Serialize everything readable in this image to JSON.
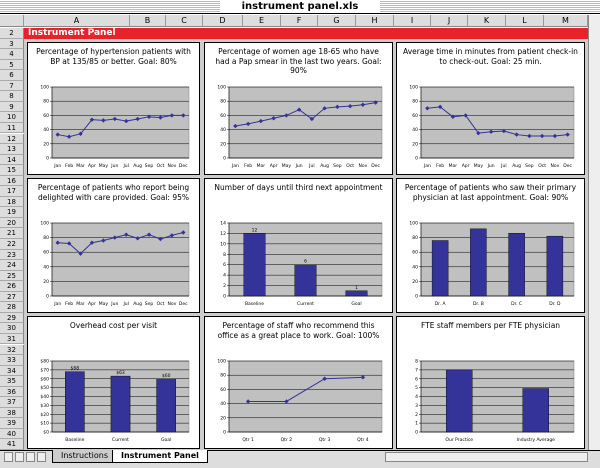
{
  "window": {
    "title": "instrument panel.xls"
  },
  "columns": [
    "A",
    "B",
    "C",
    "D",
    "E",
    "F",
    "G",
    "H",
    "I",
    "J",
    "K",
    "L",
    "M"
  ],
  "rows": [
    2,
    3,
    4,
    5,
    6,
    7,
    8,
    9,
    10,
    11,
    12,
    13,
    14,
    15,
    16,
    17,
    18,
    19,
    20,
    21,
    22,
    23,
    24,
    25,
    26,
    27,
    28,
    29,
    30,
    31,
    32,
    33,
    34,
    35,
    36,
    37,
    38,
    39,
    40,
    41
  ],
  "banner": "Instrument Panel",
  "sheet_tabs": [
    "Instructions",
    "Instrument Panel"
  ],
  "chart_data": [
    {
      "type": "line",
      "title": "Percentage of hypertension patients with BP at 135/85 or better. Goal: 80%",
      "categories": [
        "Jan",
        "Feb",
        "Mar",
        "Apr",
        "May",
        "Jun",
        "Jul",
        "Aug",
        "Sep",
        "Oct",
        "Nov",
        "Dec"
      ],
      "values": [
        33,
        30,
        34,
        54,
        53,
        55,
        52,
        55,
        58,
        57,
        60,
        60
      ],
      "color": "#333399",
      "ylim": [
        0,
        100
      ],
      "yticks": [
        0,
        20,
        40,
        60,
        80,
        100
      ],
      "grid": true
    },
    {
      "type": "line",
      "title": "Percentage of women age 18-65 who have had a Pap smear in the last two years. Goal: 90%",
      "categories": [
        "Jan",
        "Feb",
        "Mar",
        "Apr",
        "May",
        "Jun",
        "Jul",
        "Aug",
        "Sep",
        "Oct",
        "Nov",
        "Dec"
      ],
      "values": [
        45,
        48,
        52,
        56,
        60,
        68,
        55,
        70,
        72,
        73,
        75,
        78
      ],
      "color": "#333399",
      "ylim": [
        0,
        100
      ],
      "yticks": [
        0,
        20,
        40,
        60,
        80,
        100
      ],
      "grid": true
    },
    {
      "type": "line",
      "title": "Average time in minutes from patient check-in to check-out. Goal: 25 min.",
      "categories": [
        "Jan",
        "Feb",
        "Mar",
        "Apr",
        "May",
        "Jun",
        "Jul",
        "Aug",
        "Sep",
        "Oct",
        "Nov",
        "Dec"
      ],
      "values": [
        70,
        72,
        58,
        60,
        35,
        37,
        38,
        33,
        31,
        31,
        31,
        33
      ],
      "color": "#333399",
      "ylim": [
        0,
        100
      ],
      "yticks": [
        0,
        20,
        40,
        60,
        80,
        100
      ],
      "grid": true
    },
    {
      "type": "line",
      "title": "Percentage of patients who report being delighted with care provided. Goal: 95%",
      "categories": [
        "Jan",
        "Feb",
        "Mar",
        "Apr",
        "May",
        "Jun",
        "Jul",
        "Aug",
        "Sep",
        "Oct",
        "Nov",
        "Dec"
      ],
      "values": [
        73,
        72,
        58,
        73,
        76,
        80,
        84,
        79,
        84,
        78,
        83,
        87
      ],
      "color": "#333399",
      "ylim": [
        0,
        100
      ],
      "yticks": [
        0,
        20,
        40,
        60,
        80,
        100
      ],
      "grid": true
    },
    {
      "type": "bar",
      "title": "Number of days until third next appointment",
      "categories": [
        "Baseline",
        "Current",
        "Goal"
      ],
      "values": [
        12,
        6,
        1
      ],
      "color": "#333399",
      "data_labels": true,
      "ylim": [
        0,
        14
      ],
      "yticks": [
        0,
        2,
        4,
        6,
        8,
        10,
        12,
        14
      ],
      "grid": true
    },
    {
      "type": "bar",
      "title": "Percentage of patients who saw their primary physician at last appointment. Goal: 90%",
      "categories": [
        "Dr. A",
        "Dr. B",
        "Dr. C",
        "Dr. D"
      ],
      "values": [
        76,
        92,
        86,
        82
      ],
      "color": "#333399",
      "ylim": [
        0,
        100
      ],
      "yticks": [
        0,
        20,
        40,
        60,
        80,
        100
      ],
      "grid": true
    },
    {
      "type": "bar",
      "title": "Overhead cost per visit",
      "categories": [
        "Baseline",
        "Current",
        "Goal"
      ],
      "values": [
        68,
        63,
        60
      ],
      "value_labels": [
        "$68",
        "$63",
        "$60"
      ],
      "color": "#333399",
      "data_labels": true,
      "ylim": [
        0,
        80
      ],
      "yticks": [
        {
          "value": 0,
          "label": "$0"
        },
        {
          "value": 10,
          "label": "$10"
        },
        {
          "value": 20,
          "label": "$20"
        },
        {
          "value": 30,
          "label": "$30"
        },
        {
          "value": 40,
          "label": "$40"
        },
        {
          "value": 50,
          "label": "$50"
        },
        {
          "value": 60,
          "label": "$60"
        },
        {
          "value": 70,
          "label": "$70"
        },
        {
          "value": 80,
          "label": "$80"
        }
      ],
      "grid": true
    },
    {
      "type": "line",
      "title": "Percentage of staff who recommend this office as a great place to work. Goal: 100%",
      "categories": [
        "Qtr 1",
        "Qtr 2",
        "Qtr 3",
        "Qtr 4"
      ],
      "values": [
        43,
        43,
        75,
        77
      ],
      "color": "#333399",
      "ylim": [
        0,
        100
      ],
      "yticks": [
        0,
        20,
        40,
        60,
        80,
        100
      ],
      "grid": true
    },
    {
      "type": "bar",
      "title": "FTE staff members per FTE physician",
      "categories": [
        "Our Practice",
        "Industry Average"
      ],
      "values": [
        7,
        4.9
      ],
      "color": "#333399",
      "ylim": [
        0,
        8
      ],
      "yticks": [
        0,
        1,
        2,
        3,
        4,
        5,
        6,
        7,
        8
      ],
      "grid": true
    }
  ]
}
